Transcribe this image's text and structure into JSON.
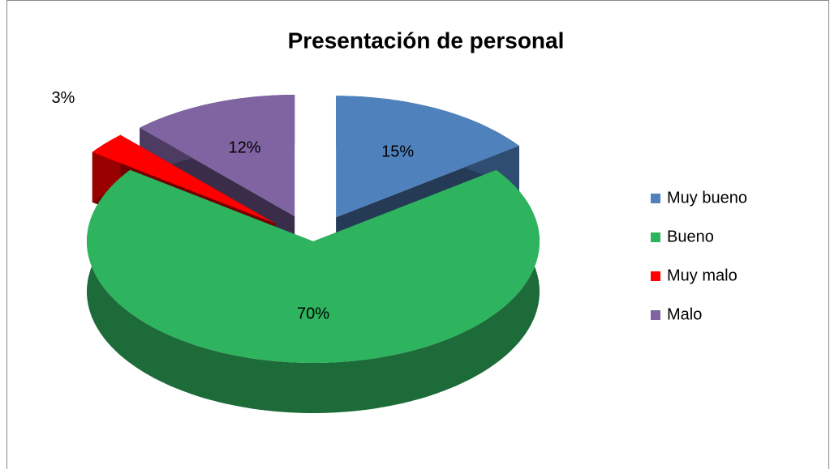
{
  "chart_data": {
    "type": "pie",
    "title": "Presentación de personal",
    "categories": [
      "Muy bueno",
      "Bueno",
      "Muy malo",
      "Malo"
    ],
    "values": [
      15,
      70,
      3,
      12
    ],
    "value_labels": [
      "15%",
      "70%",
      "3%",
      "12%"
    ],
    "colors": [
      "#4f81bd",
      "#2eb35f",
      "#ff0000",
      "#8064a2"
    ],
    "legend": "right"
  }
}
